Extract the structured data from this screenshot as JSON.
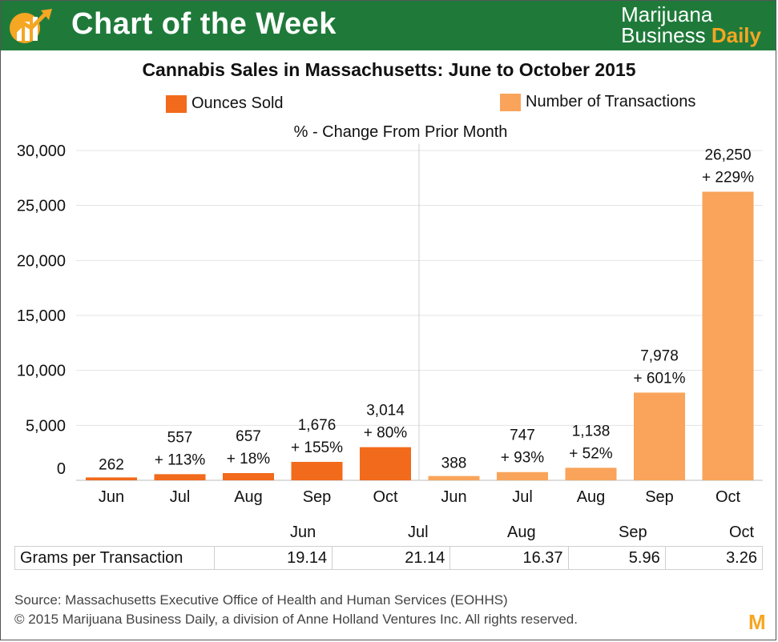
{
  "header": {
    "title": "Chart of the Week",
    "brand_line1": "Marijuana",
    "brand_line2": "Business",
    "brand_line2_accent": "Daily",
    "brand_color": "#1f7a3a",
    "accent_color": "#f5a623"
  },
  "chart_data": {
    "type": "bar",
    "title": "Cannabis Sales in Massachusetts: June to October 2015",
    "subtitle": "% - Change From Prior Month",
    "ylim": [
      0,
      30000
    ],
    "yticks": [
      "30,000",
      "25,000",
      "20,000",
      "15,000",
      "10,000",
      "5,000",
      "0"
    ],
    "ytick_values": [
      30000,
      25000,
      20000,
      15000,
      10000,
      5000,
      0
    ],
    "legend": "top",
    "grid": true,
    "series": [
      {
        "name": "Ounces Sold",
        "color": "#f26a1b",
        "categories": [
          "Jun",
          "Jul",
          "Aug",
          "Sep",
          "Oct"
        ],
        "values": [
          262,
          557,
          657,
          1676,
          3014
        ],
        "value_labels": [
          "262",
          "557",
          "657",
          "1,676",
          "3,014"
        ],
        "change_labels": [
          "",
          "+ 113%",
          "+ 18%",
          "+ 155%",
          "+ 80%"
        ]
      },
      {
        "name": "Number of Transactions",
        "color": "#f9a45a",
        "categories": [
          "Jun",
          "Jul",
          "Aug",
          "Sep",
          "Oct"
        ],
        "values": [
          388,
          747,
          1138,
          7978,
          26250
        ],
        "value_labels": [
          "388",
          "747",
          "1,138",
          "7,978",
          "26,250"
        ],
        "change_labels": [
          "",
          "+ 93%",
          "+ 52%",
          "+ 601%",
          "+ 229%"
        ]
      }
    ]
  },
  "grams_table": {
    "months": [
      "Jun",
      "Jul",
      "Aug",
      "Sep",
      "Oct"
    ],
    "label": "Grams per Transaction",
    "values": [
      "19.14",
      "21.14",
      "16.37",
      "5.96",
      "3.26"
    ]
  },
  "footer": {
    "source": "Source: Massachusetts Executive Office of Health and Human Services (EOHHS)",
    "copyright": "© 2015 Marijuana Business Daily, a division of Anne Holland Ventures Inc. All rights reserved.",
    "logo_letter": "M"
  }
}
